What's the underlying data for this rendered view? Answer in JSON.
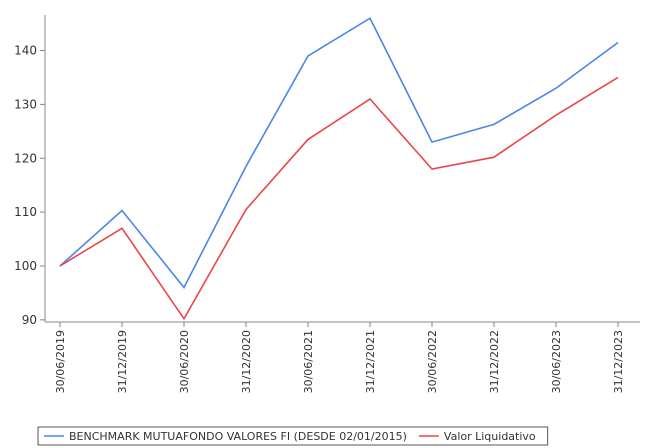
{
  "chart_data": {
    "type": "line",
    "categories": [
      "30/06/2019",
      "31/12/2019",
      "30/06/2020",
      "31/12/2020",
      "30/06/2021",
      "31/12/2021",
      "30/06/2022",
      "31/12/2022",
      "30/06/2023",
      "31/12/2023"
    ],
    "series": [
      {
        "name": "BENCHMARK MUTUAFONDO VALORES FI (DESDE 02/01/2015)",
        "color": "#4a86e8",
        "values": [
          100,
          110.3,
          96,
          118.5,
          139,
          146,
          123,
          126.3,
          133,
          141.5
        ]
      },
      {
        "name": "Valor Liquidativo",
        "color": "#e8464a",
        "values": [
          100,
          107,
          90.2,
          110.5,
          123.5,
          131,
          118,
          120.2,
          128,
          135
        ]
      }
    ],
    "ylim": [
      89.6,
      146.6
    ],
    "yticks": [
      90,
      100,
      110,
      120,
      130,
      140
    ],
    "grid": false,
    "legend": "bottom"
  }
}
